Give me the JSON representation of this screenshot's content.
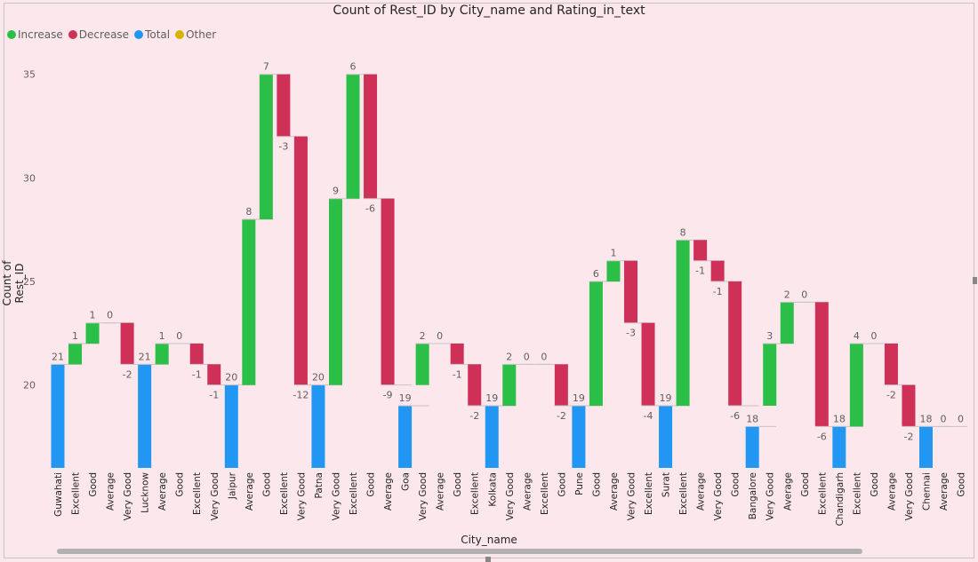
{
  "chart_data": {
    "type": "waterfall",
    "title": "Count of Rest_ID by City_name and Rating_in_text",
    "xlabel": "City_name",
    "ylabel": "Count of Rest_ID",
    "ylim": [
      16,
      36
    ],
    "yticks": [
      20,
      25,
      30,
      35
    ],
    "grid": false,
    "legend": {
      "position": "top-left",
      "entries": [
        {
          "label": "Increase",
          "color": "#2bbf48"
        },
        {
          "label": "Decrease",
          "color": "#cf3057"
        },
        {
          "label": "Total",
          "color": "#2196f3"
        },
        {
          "label": "Other",
          "color": "#d6b300"
        }
      ]
    },
    "categories": [
      "Guwahati",
      "Excellent",
      "Good",
      "Average",
      "Very Good",
      "Lucknow",
      "Average",
      "Good",
      "Excellent",
      "Very Good",
      "Jaipur",
      "Average",
      "Good",
      "Excellent",
      "Very Good",
      "Patna",
      "Very Good",
      "Excellent",
      "Good",
      "Average",
      "Goa",
      "Very Good",
      "Average",
      "Good",
      "Excellent",
      "Kolkata",
      "Very Good",
      "Average",
      "Excellent",
      "Good",
      "Pune",
      "Good",
      "Average",
      "Very Good",
      "Excellent",
      "Surat",
      "Excellent",
      "Average",
      "Very Good",
      "Good",
      "Bangalore",
      "Very Good",
      "Average",
      "Good",
      "Excellent",
      "Chandigarh",
      "Excellent",
      "Good",
      "Average",
      "Very Good",
      "Chennai",
      "Average",
      "Good"
    ],
    "kinds": [
      "total",
      "delta",
      "delta",
      "delta",
      "delta",
      "total",
      "delta",
      "delta",
      "delta",
      "delta",
      "total",
      "delta",
      "delta",
      "delta",
      "delta",
      "total",
      "delta",
      "delta",
      "delta",
      "delta",
      "total",
      "delta",
      "delta",
      "delta",
      "delta",
      "total",
      "delta",
      "delta",
      "delta",
      "delta",
      "total",
      "delta",
      "delta",
      "delta",
      "delta",
      "total",
      "delta",
      "delta",
      "delta",
      "delta",
      "total",
      "delta",
      "delta",
      "delta",
      "delta",
      "total",
      "delta",
      "delta",
      "delta",
      "delta",
      "total",
      "delta",
      "delta"
    ],
    "values": [
      21,
      1,
      1,
      0,
      -2,
      21,
      1,
      0,
      -1,
      -1,
      20,
      8,
      7,
      -3,
      -12,
      20,
      9,
      6,
      -6,
      -9,
      19,
      2,
      0,
      -1,
      -2,
      19,
      2,
      0,
      0,
      -2,
      19,
      6,
      1,
      -3,
      -4,
      19,
      8,
      -1,
      -1,
      -6,
      18,
      3,
      2,
      0,
      -6,
      18,
      4,
      0,
      -2,
      -2,
      18,
      0,
      0
    ]
  }
}
